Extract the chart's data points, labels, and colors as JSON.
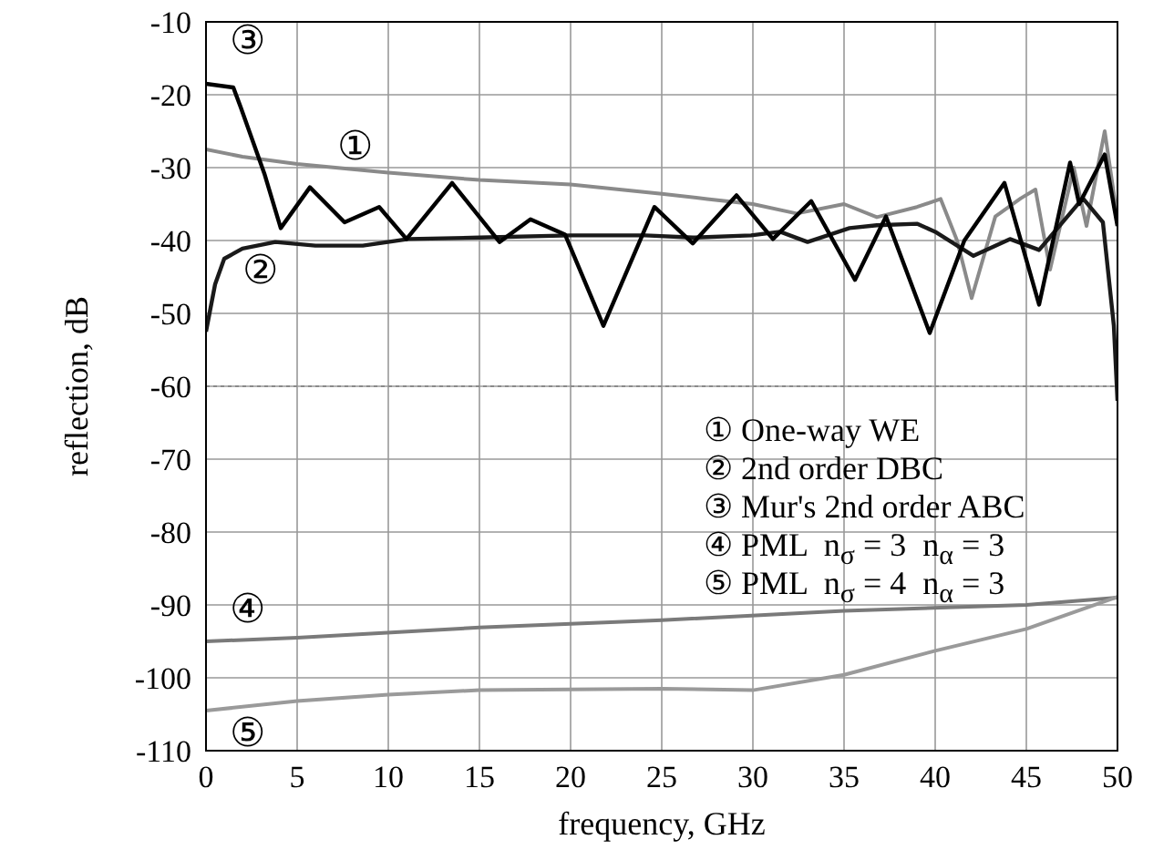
{
  "chart_data": {
    "type": "line",
    "xlabel": "frequency, GHz",
    "ylabel": "reflection, dB",
    "xlim": [
      0,
      50
    ],
    "xticks": [
      0,
      5,
      10,
      15,
      20,
      25,
      30,
      35,
      40,
      45,
      50
    ],
    "ylim": [
      -110,
      -10
    ],
    "yticks": [
      -10,
      -20,
      -30,
      -40,
      -50,
      -60,
      -70,
      -80,
      -90,
      -100,
      -110
    ],
    "grid": true,
    "ref_lines": [
      {
        "axis": "y",
        "value": -60,
        "color": "#8a8a8a",
        "line_style": "dotted"
      }
    ],
    "annotations": [
      "③",
      "①",
      "②",
      "④",
      "⑤",
      "① One-way WE",
      "② 2nd order DBC",
      "③ Mur's 2nd order ABC",
      "④ PML  n$_{σ}$ = 3  n$_{α}$ = 3",
      "⑤ PML  n$_{σ}$ = 4  n$_{α}$ = 3"
    ],
    "series": [
      {
        "color": "#8a8a8a",
        "x": [
          0,
          2,
          5,
          10,
          15,
          20,
          25,
          27.5,
          30,
          32.4,
          35,
          36.8,
          39,
          40.3,
          41.2,
          42,
          43.3,
          44.7,
          45.5,
          46.3,
          47.6,
          48.3,
          49.3,
          50
        ],
        "values": [
          -27.5,
          -28.5,
          -29.5,
          -30.7,
          -31.7,
          -32.3,
          -33.6,
          -34.3,
          -35,
          -36.3,
          -35,
          -36.8,
          -35.4,
          -34.3,
          -40,
          -47.9,
          -36.7,
          -34.2,
          -33,
          -44,
          -30,
          -38,
          -25,
          -37
        ]
      },
      {
        "color": "#1a1a1a",
        "x": [
          0,
          0.5,
          1,
          2,
          3.8,
          6,
          8.6,
          11.1,
          15,
          20,
          24.1,
          26.7,
          29.9,
          31.5,
          33,
          35.3,
          36.8,
          39,
          40,
          42.1,
          44.1,
          45.7,
          48.1,
          49.2,
          49.8,
          50
        ],
        "values": [
          -52.5,
          -46,
          -42.5,
          -41.1,
          -40.2,
          -40.7,
          -40.7,
          -39.8,
          -39.6,
          -39.3,
          -39.3,
          -39.6,
          -39.3,
          -38.8,
          -40.2,
          -38.3,
          -37.9,
          -37.7,
          -38.8,
          -42.1,
          -39.8,
          -41.3,
          -34.2,
          -37.5,
          -51.7,
          -62
        ]
      },
      {
        "color": "#000000",
        "x": [
          0,
          1.5,
          1.9,
          3.2,
          4.1,
          5.7,
          7.6,
          9.5,
          11,
          13.5,
          16.1,
          17.8,
          19.7,
          21.8,
          24.6,
          26.7,
          29.1,
          31.1,
          33.2,
          35.6,
          37.3,
          39.7,
          41.6,
          43.8,
          45.7,
          47.4,
          47.9,
          49.3,
          50
        ],
        "values": [
          -18.5,
          -19,
          -21.7,
          -30.8,
          -38.3,
          -32.7,
          -37.5,
          -35.4,
          -39.8,
          -32.1,
          -40.2,
          -37.1,
          -39.2,
          -51.7,
          -35.4,
          -40.4,
          -33.8,
          -39.8,
          -34.6,
          -45.4,
          -36.7,
          -52.7,
          -40,
          -32.1,
          -48.8,
          -29.3,
          -35,
          -28.2,
          -38
        ]
      },
      {
        "color": "#7a7a7a",
        "x": [
          0,
          5,
          15,
          25,
          35,
          45,
          50
        ],
        "values": [
          -95,
          -94.5,
          -93.1,
          -92.1,
          -90.8,
          -90,
          -89
        ]
      },
      {
        "color": "#9a9a9a",
        "x": [
          0,
          5,
          10,
          15,
          25,
          30,
          35,
          40,
          45,
          50
        ],
        "values": [
          -104.5,
          -103.2,
          -102.3,
          -101.7,
          -101.5,
          -101.7,
          -99.6,
          -96.3,
          -93.3,
          -88.9
        ]
      }
    ]
  }
}
